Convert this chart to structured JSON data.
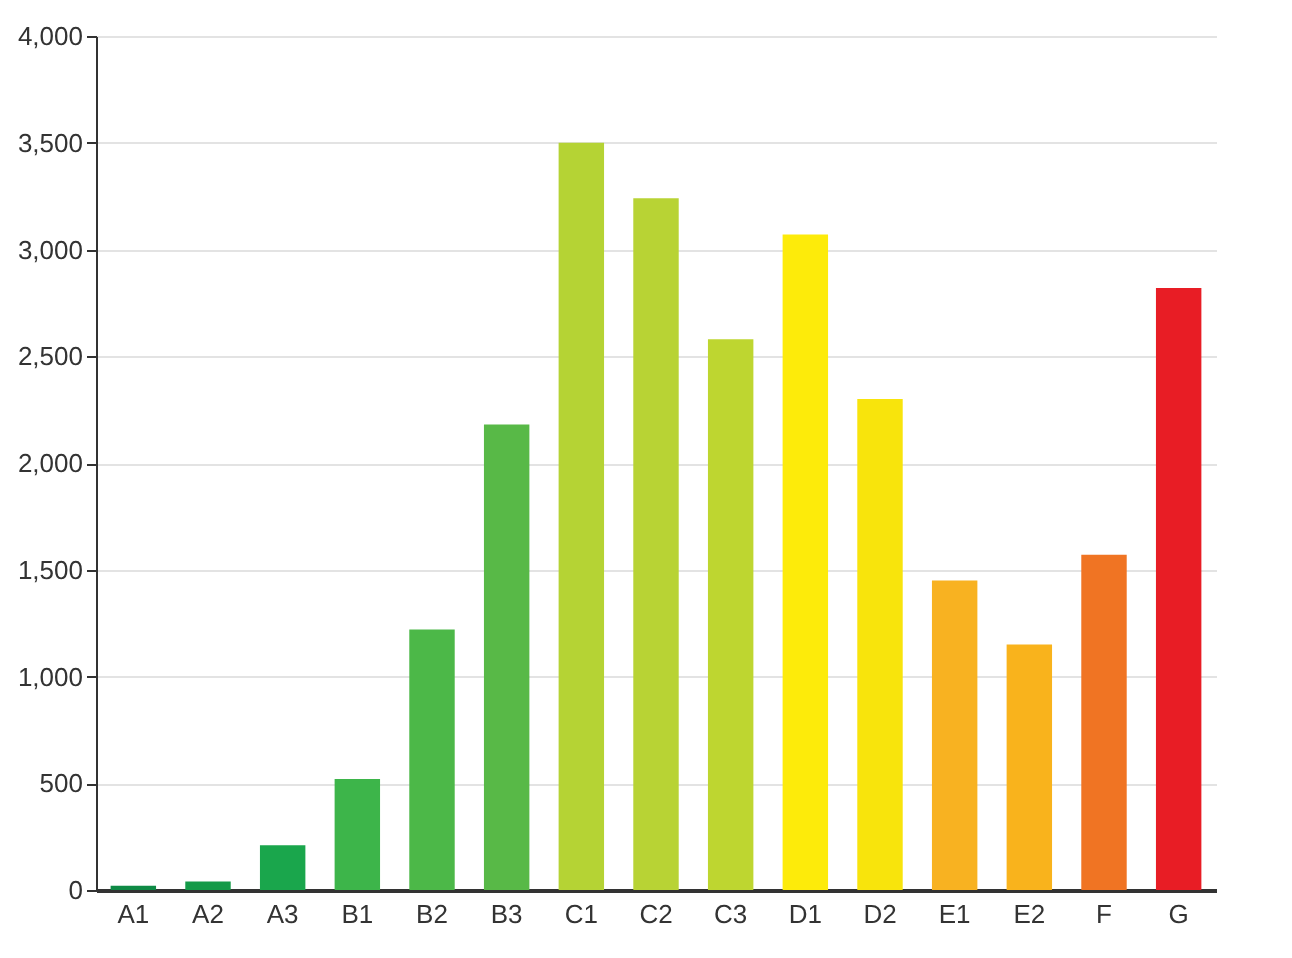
{
  "chart_data": {
    "type": "bar",
    "categories": [
      "A1",
      "A2",
      "A3",
      "B1",
      "B2",
      "B3",
      "C1",
      "C2",
      "C3",
      "D1",
      "D2",
      "E1",
      "E2",
      "F",
      "G"
    ],
    "values": [
      20,
      40,
      210,
      520,
      1220,
      2180,
      3500,
      3240,
      2580,
      3070,
      2300,
      1450,
      1150,
      1570,
      2820
    ],
    "colors": [
      "#0e8a45",
      "#149a48",
      "#1aa64c",
      "#3db54a",
      "#4cb848",
      "#58b947",
      "#b5d334",
      "#b8d334",
      "#bed630",
      "#fdeb0a",
      "#f8e40c",
      "#f8b221",
      "#f9b31c",
      "#f07423",
      "#e81d25"
    ],
    "ylim": [
      0,
      4000
    ],
    "yticks": [
      0,
      500,
      {
        "value": 1000,
        "label": "1,000"
      },
      {
        "value": 1500,
        "label": "1,500"
      },
      {
        "value": 2000,
        "label": "2,000"
      },
      {
        "value": 2500,
        "label": "2,500"
      },
      {
        "value": 3000,
        "label": "3,000"
      },
      {
        "value": 3500,
        "label": "3,500"
      },
      {
        "value": 4000,
        "label": "4,000"
      }
    ],
    "grid": "y"
  }
}
